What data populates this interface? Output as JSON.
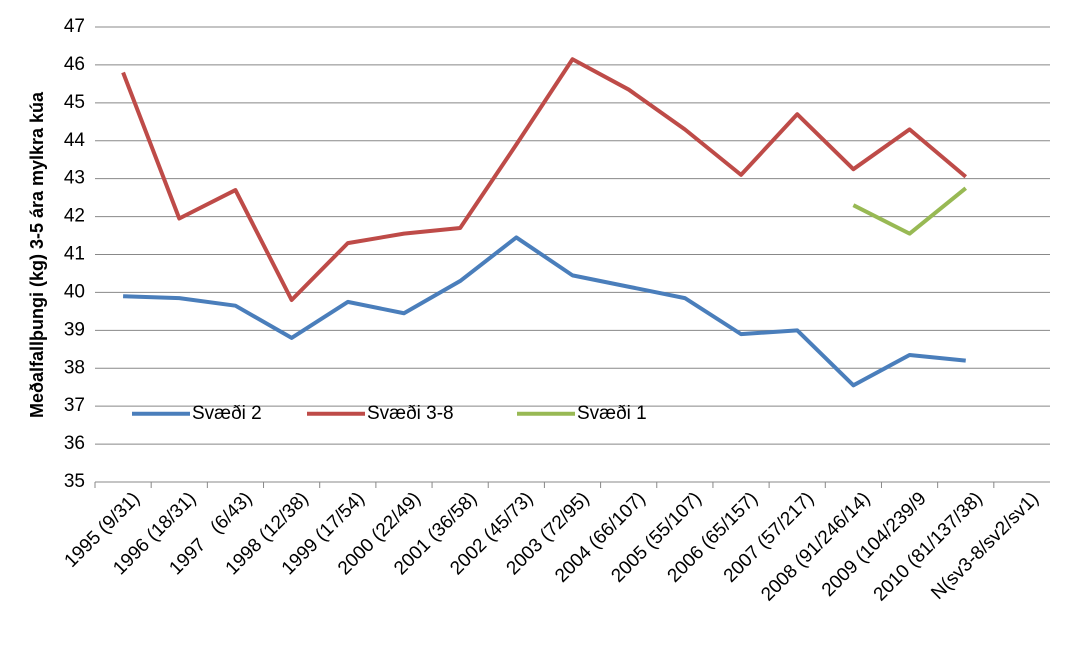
{
  "chart_data": {
    "type": "line",
    "y_label": "Meðalfallþungi (kg) 3-5 ára mylkra kúa",
    "categories": [
      "1995 (9/31)",
      "1996 (18/31)",
      "1997   (6/43)",
      "1998 (12/38)",
      "1999 (17/54)",
      "2000 (22/49)",
      "2001 (36/58)",
      "2002 (45/73)",
      "2003 (72/95)",
      "2004 (66/107)",
      "2005 (55/107)",
      "2006 (65/157)",
      "2007 (57/217)",
      "2008 (91/246/14)",
      "2009 (104/239/9",
      "2010 (81/137/38)",
      "N(sv3-8/sv2/sv1)"
    ],
    "series": [
      {
        "name": "Svæði 2",
        "color": "#4a7ebb",
        "values": [
          39.9,
          39.85,
          39.65,
          38.8,
          39.75,
          39.45,
          40.3,
          41.45,
          40.45,
          40.15,
          39.85,
          38.9,
          39.0,
          37.55,
          38.35,
          38.2,
          null
        ]
      },
      {
        "name": "Svæði 3-8",
        "color": "#be4b48",
        "values": [
          45.8,
          41.95,
          42.7,
          39.8,
          41.3,
          41.55,
          41.7,
          43.9,
          46.15,
          45.35,
          44.3,
          43.1,
          44.7,
          43.25,
          44.3,
          43.05,
          null
        ]
      },
      {
        "name": "Svæði 1",
        "color": "#98b954",
        "values": [
          null,
          null,
          null,
          null,
          null,
          null,
          null,
          null,
          null,
          null,
          null,
          null,
          null,
          42.3,
          41.55,
          42.75,
          null
        ]
      }
    ],
    "ylim": [
      35,
      47
    ],
    "yticks": [
      35,
      36,
      37,
      38,
      39,
      40,
      41,
      42,
      43,
      44,
      45,
      46,
      47
    ],
    "grid": true,
    "legend": "left"
  }
}
